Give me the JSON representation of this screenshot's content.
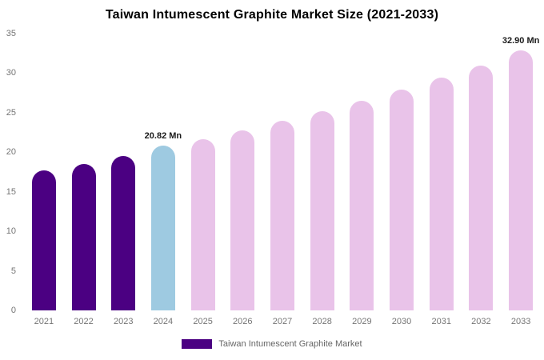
{
  "title": "Taiwan Intumescent Graphite Market Size (2021-2033)",
  "legend": {
    "label": "Taiwan Intumescent Graphite Market",
    "swatch_color": "#4b0082"
  },
  "colors": {
    "historical": "#4b0082",
    "highlight_current": "#9ecae1",
    "forecast": "#e9c3e9",
    "axis_text": "#757575",
    "background": "#ffffff"
  },
  "chart_data": {
    "type": "bar",
    "title": "Taiwan Intumescent Graphite Market Size (2021-2033)",
    "xlabel": "",
    "ylabel": "",
    "ylim": [
      0,
      35
    ],
    "yticks": [
      0,
      5,
      10,
      15,
      20,
      25,
      30,
      35
    ],
    "grid": false,
    "legend_position": "bottom",
    "categories": [
      "2021",
      "2022",
      "2023",
      "2024",
      "2025",
      "2026",
      "2027",
      "2028",
      "2029",
      "2030",
      "2031",
      "2032",
      "2033"
    ],
    "values": [
      17.7,
      18.5,
      19.5,
      20.82,
      21.6,
      22.75,
      24.0,
      25.2,
      26.5,
      27.95,
      29.4,
      31.0,
      32.9
    ],
    "bar_colors": [
      "#4b0082",
      "#4b0082",
      "#4b0082",
      "#9ecae1",
      "#e9c3e9",
      "#e9c3e9",
      "#e9c3e9",
      "#e9c3e9",
      "#e9c3e9",
      "#e9c3e9",
      "#e9c3e9",
      "#e9c3e9",
      "#e9c3e9"
    ],
    "annotations": [
      {
        "category": "2024",
        "text": "20.82 Mn"
      },
      {
        "category": "2033",
        "text": "32.90 Mn"
      }
    ],
    "series_name": "Taiwan Intumescent Graphite Market"
  }
}
